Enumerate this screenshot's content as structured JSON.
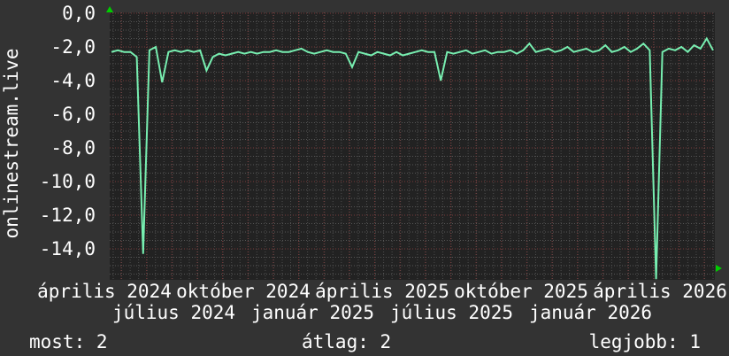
{
  "chart_data": {
    "type": "line",
    "ylabel": "onlinestream.live",
    "ylim": [
      -15.8,
      0
    ],
    "y_ticks": [
      "0,0",
      "-2,0",
      "-4,0",
      "-6,0",
      "-8,0",
      "-10,0",
      "-12,0",
      "-14,0"
    ],
    "x_ticks": [
      "április 2024",
      "július 2024",
      "október 2024",
      "január 2025",
      "április 2025",
      "július 2025",
      "október 2025",
      "január 2026",
      "április 2026"
    ],
    "grid": true,
    "series": [
      {
        "color": "#77eeb0",
        "values": [
          -2.3,
          -2.2,
          -2.3,
          -2.3,
          -2.6,
          -14.3,
          -2.2,
          -2.0,
          -4.1,
          -2.3,
          -2.2,
          -2.3,
          -2.2,
          -2.3,
          -2.2,
          -3.4,
          -2.6,
          -2.4,
          -2.5,
          -2.4,
          -2.3,
          -2.4,
          -2.3,
          -2.4,
          -2.3,
          -2.3,
          -2.2,
          -2.3,
          -2.3,
          -2.2,
          -2.1,
          -2.3,
          -2.4,
          -2.3,
          -2.2,
          -2.3,
          -2.3,
          -2.4,
          -3.2,
          -2.3,
          -2.4,
          -2.5,
          -2.3,
          -2.4,
          -2.5,
          -2.3,
          -2.5,
          -2.4,
          -2.3,
          -2.2,
          -2.3,
          -2.3,
          -4.0,
          -2.3,
          -2.4,
          -2.3,
          -2.2,
          -2.4,
          -2.3,
          -2.2,
          -2.4,
          -2.3,
          -2.3,
          -2.2,
          -2.4,
          -2.2,
          -1.8,
          -2.3,
          -2.2,
          -2.1,
          -2.3,
          -2.2,
          -2.0,
          -2.3,
          -2.2,
          -2.1,
          -2.3,
          -2.2,
          -1.9,
          -2.3,
          -2.2,
          -2.0,
          -2.3,
          -2.1,
          -1.8,
          -2.2,
          -15.8,
          -2.3,
          -2.1,
          -2.2,
          -2.0,
          -2.3,
          -1.9,
          -2.1,
          -1.5,
          -2.2
        ]
      }
    ]
  },
  "legend": {
    "current": "most: 2",
    "average": "átlag: 2",
    "best": "legjobb: 1"
  },
  "colors": {
    "background": "#333333",
    "plot": "#222222",
    "line": "#77eeb0",
    "major_grid": "#883333",
    "minor_grid": "#555555",
    "arrow": "#00cc00"
  }
}
